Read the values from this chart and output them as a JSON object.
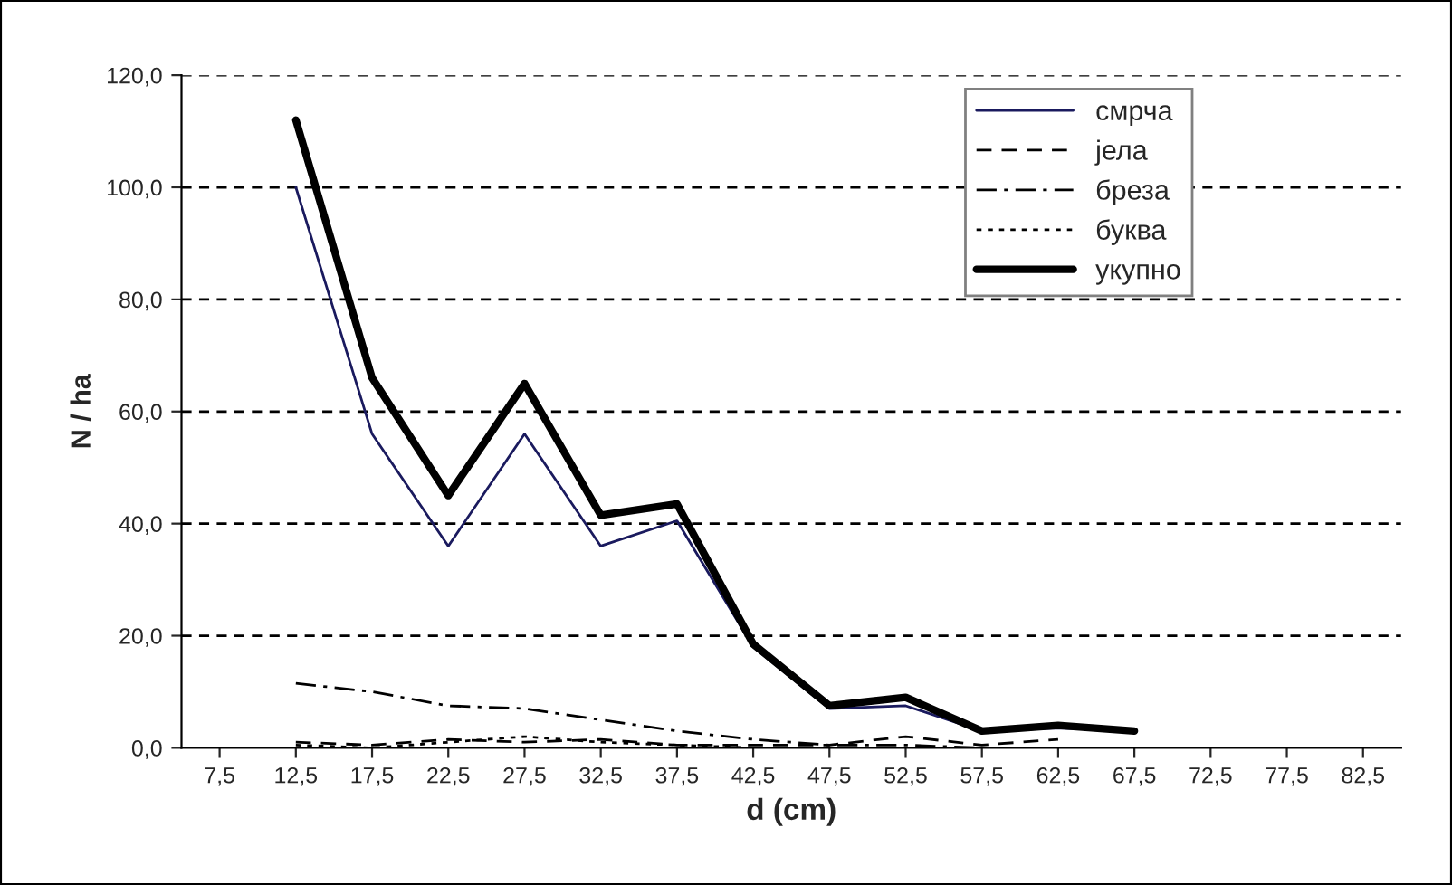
{
  "chart_data": {
    "type": "line",
    "xlabel": "d (cm)",
    "ylabel": "N / ha",
    "categories": [
      "7,5",
      "12,5",
      "17,5",
      "22,5",
      "27,5",
      "32,5",
      "37,5",
      "42,5",
      "47,5",
      "52,5",
      "57,5",
      "62,5",
      "67,5",
      "72,5",
      "77,5",
      "82,5"
    ],
    "series": [
      {
        "name": "смрча",
        "color": "#1a1a5e",
        "line_style": "solid",
        "values": [
          null,
          100,
          56,
          36,
          56,
          36,
          40.5,
          18,
          7,
          7.5,
          3,
          3.5,
          3,
          null,
          null,
          null
        ]
      },
      {
        "name": "јела",
        "color": "#000000",
        "line_style": "dashed",
        "values": [
          null,
          1,
          0.5,
          1.5,
          1,
          1.5,
          0.5,
          0.5,
          0.5,
          2,
          0.5,
          1.5,
          null,
          null,
          null,
          null
        ]
      },
      {
        "name": "бреза",
        "color": "#000000",
        "line_style": "dashdot",
        "values": [
          null,
          11.5,
          10,
          7.5,
          7,
          5,
          3,
          1.5,
          0.5,
          0.5,
          0,
          null,
          null,
          null,
          null,
          null
        ]
      },
      {
        "name": "буква",
        "color": "#000000",
        "line_style": "dotted",
        "values": [
          null,
          0.5,
          0,
          1,
          2,
          1,
          0.5,
          0,
          0,
          0,
          0,
          null,
          null,
          null,
          null,
          null
        ]
      },
      {
        "name": "укупно",
        "color": "#000000",
        "line_style": "solid",
        "values": [
          null,
          112,
          66,
          45,
          65,
          41.5,
          43.5,
          18.5,
          7.5,
          9,
          3,
          4,
          3,
          null,
          null,
          null
        ]
      }
    ],
    "ylim": [
      0,
      120
    ],
    "yticks": [
      {
        "value": 0,
        "label": "0,0"
      },
      {
        "value": 20,
        "label": "20,0"
      },
      {
        "value": 40,
        "label": "40,0"
      },
      {
        "value": 60,
        "label": "60,0"
      },
      {
        "value": 80,
        "label": "80,0"
      },
      {
        "value": 100,
        "label": "100,0"
      },
      {
        "value": 120,
        "label": "120,0"
      }
    ],
    "grid": "y",
    "legend": "top right"
  }
}
